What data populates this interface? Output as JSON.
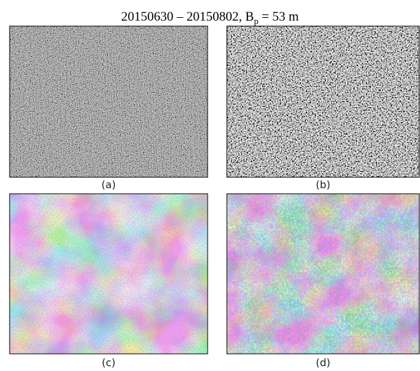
{
  "title_parts": [
    "20150630 – 20150802, B",
    "p",
    " = 53 m"
  ],
  "panels": [
    {
      "label": "(a)"
    },
    {
      "label": "(b)"
    },
    {
      "label": "(c)"
    },
    {
      "label": "(d)"
    }
  ]
}
